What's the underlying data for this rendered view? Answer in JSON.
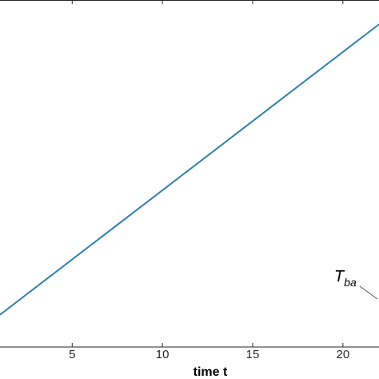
{
  "chart_data": {
    "type": "line",
    "x_ticks": [
      5,
      10,
      15,
      20
    ],
    "x_tick_labels": [
      "5",
      "10",
      "15",
      "20"
    ],
    "xlim": [
      1,
      22
    ],
    "xlabel": "time t",
    "series": [
      {
        "x": [
          1,
          22
        ],
        "y": [
          0.093,
          0.93
        ],
        "color": "#2e7fb0"
      }
    ],
    "annotation": {
      "main": "T",
      "sub": "ba"
    },
    "grid": false,
    "colors": {
      "series": "#2e7fb0",
      "axes": "#262626",
      "background": "#ffffff",
      "annotation_line": "#555555"
    }
  }
}
